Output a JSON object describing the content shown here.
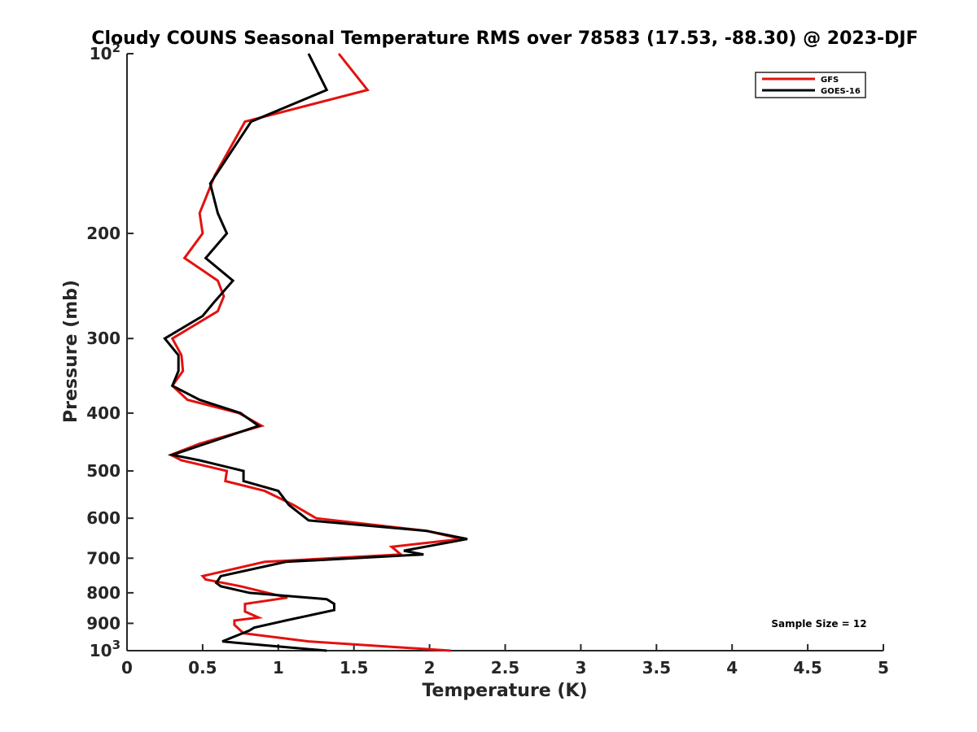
{
  "chart_data": {
    "type": "line",
    "title": "Cloudy COUNS Seasonal Temperature RMS over 78583 (17.53, -88.30) @ 2023-DJF",
    "xlabel": "Temperature (K)",
    "ylabel": "Pressure (mb)",
    "xlim": [
      0,
      5
    ],
    "ylim": [
      100,
      1000
    ],
    "y_scale": "log",
    "y_reversed": true,
    "grid": false,
    "legend_position": "top-right",
    "x_ticks": [
      "0",
      "0.5",
      "1",
      "1.5",
      "2",
      "2.5",
      "3",
      "3.5",
      "4",
      "4.5",
      "5"
    ],
    "y_ticks": [
      {
        "value": 100,
        "base": "10",
        "exp": "2"
      },
      {
        "value": 200,
        "label": "200"
      },
      {
        "value": 300,
        "label": "300"
      },
      {
        "value": 400,
        "label": "400"
      },
      {
        "value": 500,
        "label": "500"
      },
      {
        "value": 600,
        "label": "600"
      },
      {
        "value": 700,
        "label": "700"
      },
      {
        "value": 800,
        "label": "800"
      },
      {
        "value": 900,
        "label": "900"
      },
      {
        "value": 1000,
        "base": "10",
        "exp": "3"
      }
    ],
    "annotation": "Sample Size = 12",
    "series": [
      {
        "name": "GFS",
        "color": "#e3110f",
        "points": [
          [
            1.4,
            100
          ],
          [
            1.59,
            115
          ],
          [
            0.78,
            130
          ],
          [
            0.58,
            160
          ],
          [
            0.48,
            185
          ],
          [
            0.5,
            200
          ],
          [
            0.38,
            220
          ],
          [
            0.6,
            240
          ],
          [
            0.64,
            255
          ],
          [
            0.6,
            270
          ],
          [
            0.3,
            300
          ],
          [
            0.36,
            320
          ],
          [
            0.37,
            340
          ],
          [
            0.3,
            360
          ],
          [
            0.4,
            380
          ],
          [
            0.74,
            400
          ],
          [
            0.89,
            420
          ],
          [
            0.48,
            450
          ],
          [
            0.29,
            470
          ],
          [
            0.36,
            480
          ],
          [
            0.66,
            500
          ],
          [
            0.65,
            520
          ],
          [
            0.91,
            540
          ],
          [
            1.1,
            570
          ],
          [
            1.25,
            600
          ],
          [
            1.98,
            630
          ],
          [
            2.21,
            650
          ],
          [
            1.75,
            670
          ],
          [
            1.81,
            690
          ],
          [
            0.91,
            710
          ],
          [
            0.5,
            750
          ],
          [
            0.52,
            760
          ],
          [
            0.75,
            780
          ],
          [
            1.06,
            815
          ],
          [
            0.78,
            835
          ],
          [
            0.78,
            860
          ],
          [
            0.87,
            880
          ],
          [
            0.71,
            890
          ],
          [
            0.71,
            905
          ],
          [
            0.77,
            935
          ],
          [
            1.2,
            965
          ],
          [
            2.14,
            1000
          ]
        ]
      },
      {
        "name": "GOES-16",
        "color": "#000000",
        "points": [
          [
            1.2,
            100
          ],
          [
            1.32,
            115
          ],
          [
            0.82,
            130
          ],
          [
            0.55,
            165
          ],
          [
            0.6,
            185
          ],
          [
            0.66,
            200
          ],
          [
            0.52,
            220
          ],
          [
            0.7,
            240
          ],
          [
            0.58,
            260
          ],
          [
            0.5,
            275
          ],
          [
            0.25,
            300
          ],
          [
            0.34,
            320
          ],
          [
            0.34,
            340
          ],
          [
            0.3,
            360
          ],
          [
            0.48,
            380
          ],
          [
            0.75,
            400
          ],
          [
            0.87,
            420
          ],
          [
            0.52,
            450
          ],
          [
            0.3,
            470
          ],
          [
            0.48,
            480
          ],
          [
            0.77,
            500
          ],
          [
            0.77,
            520
          ],
          [
            1.0,
            540
          ],
          [
            1.07,
            570
          ],
          [
            1.2,
            605
          ],
          [
            1.98,
            630
          ],
          [
            2.25,
            650
          ],
          [
            1.83,
            680
          ],
          [
            1.96,
            690
          ],
          [
            1.05,
            710
          ],
          [
            0.62,
            750
          ],
          [
            0.59,
            770
          ],
          [
            0.62,
            780
          ],
          [
            0.81,
            800
          ],
          [
            1.32,
            820
          ],
          [
            1.37,
            835
          ],
          [
            1.37,
            855
          ],
          [
            1.05,
            890
          ],
          [
            0.84,
            915
          ],
          [
            0.81,
            925
          ],
          [
            0.63,
            965
          ],
          [
            0.72,
            970
          ],
          [
            1.32,
            1000
          ]
        ]
      }
    ]
  }
}
